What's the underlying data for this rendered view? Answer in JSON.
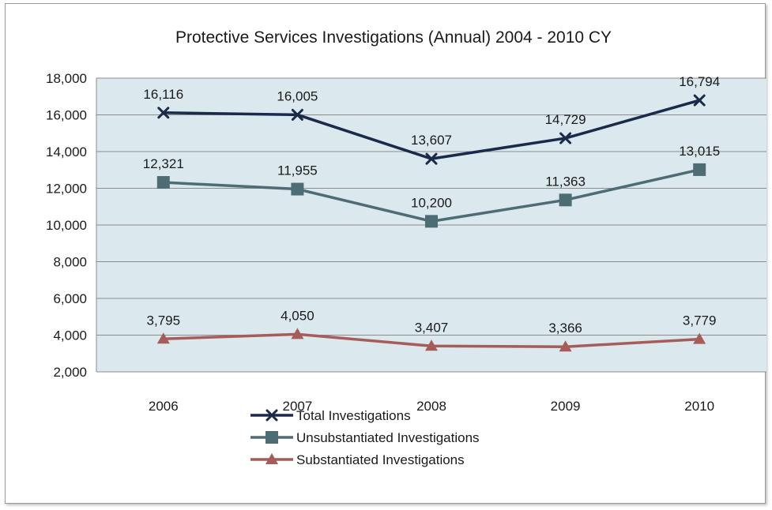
{
  "chart_data": {
    "type": "line",
    "title": "Protective Services  Investigations (Annual)  2004 - 2010 CY",
    "categories": [
      "2006",
      "2007",
      "2008",
      "2009",
      "2010"
    ],
    "ylim": [
      2000,
      18000
    ],
    "yticks": [
      2000,
      4000,
      6000,
      8000,
      10000,
      12000,
      14000,
      16000,
      18000
    ],
    "ytick_labels": [
      "2,000",
      "4,000",
      "6,000",
      "8,000",
      "10,000",
      "12,000",
      "14,000",
      "16,000",
      "18,000"
    ],
    "grid": true,
    "legend_position": "bottom",
    "plot_background": "#dbe9ef",
    "series": [
      {
        "name": "Total Investigations",
        "values": [
          16116,
          16005,
          13607,
          14729,
          16794
        ],
        "labels": [
          "16,116",
          "16,005",
          "13,607",
          "14,729",
          "16,794"
        ],
        "color": "#1b2a4a",
        "marker": "x"
      },
      {
        "name": "Unsubstantiated Investigations",
        "values": [
          12321,
          11955,
          10200,
          11363,
          13015
        ],
        "labels": [
          "12,321",
          "11,955",
          "10,200",
          "11,363",
          "13,015"
        ],
        "color": "#4e6c74",
        "marker": "square"
      },
      {
        "name": "Substantiated Investigations",
        "values": [
          3795,
          4050,
          3407,
          3366,
          3779
        ],
        "labels": [
          "3,795",
          "4,050",
          "3,407",
          "3,366",
          "3,779"
        ],
        "color": "#a65d5a",
        "marker": "triangle"
      }
    ]
  }
}
